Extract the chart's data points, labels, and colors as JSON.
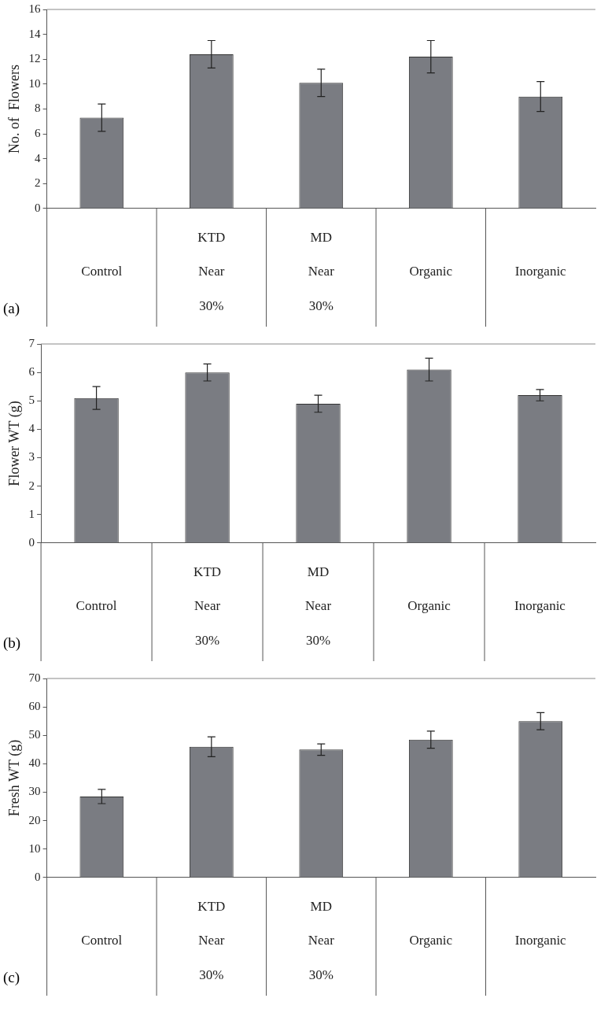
{
  "chart_data": [
    {
      "type": "bar",
      "ylabel": "No. of  Flowers",
      "categories": [
        "Control",
        "KTD Near 30%",
        "MD Near 30%",
        "Organic",
        "Inorganic"
      ],
      "values": [
        7.3,
        12.4,
        10.1,
        12.2,
        9.0
      ],
      "errors": [
        1.1,
        1.1,
        1.1,
        1.3,
        1.2
      ],
      "color": "#7a7c82",
      "ylim": [
        0,
        16
      ],
      "yticks": [
        0,
        2,
        4,
        6,
        8,
        10,
        12,
        14,
        16
      ],
      "annotations": [
        "(a)"
      ]
    },
    {
      "type": "bar",
      "ylabel": "Flower WT (g)",
      "categories": [
        "Control",
        "KTD Near 30%",
        "MD Near 30%",
        "Organic",
        "Inorganic"
      ],
      "values": [
        5.1,
        6.0,
        4.9,
        6.1,
        5.2
      ],
      "errors": [
        0.4,
        0.3,
        0.3,
        0.4,
        0.2
      ],
      "color": "#7a7c82",
      "ylim": [
        0,
        7
      ],
      "yticks": [
        0,
        1,
        2,
        3,
        4,
        5,
        6,
        7
      ],
      "annotations": [
        "(b)"
      ]
    },
    {
      "type": "bar",
      "ylabel": "Fresh WT (g)",
      "categories": [
        "Control",
        "KTD Near 30%",
        "MD Near 30%",
        "Organic",
        "Inorganic"
      ],
      "values": [
        28.5,
        46,
        45,
        48.5,
        55
      ],
      "errors": [
        2.5,
        3.5,
        2,
        3,
        3
      ],
      "color": "#7a7c82",
      "ylim": [
        0,
        70
      ],
      "yticks": [
        0,
        10,
        20,
        30,
        40,
        50,
        60,
        70
      ],
      "annotations": [
        "(c)"
      ]
    }
  ]
}
